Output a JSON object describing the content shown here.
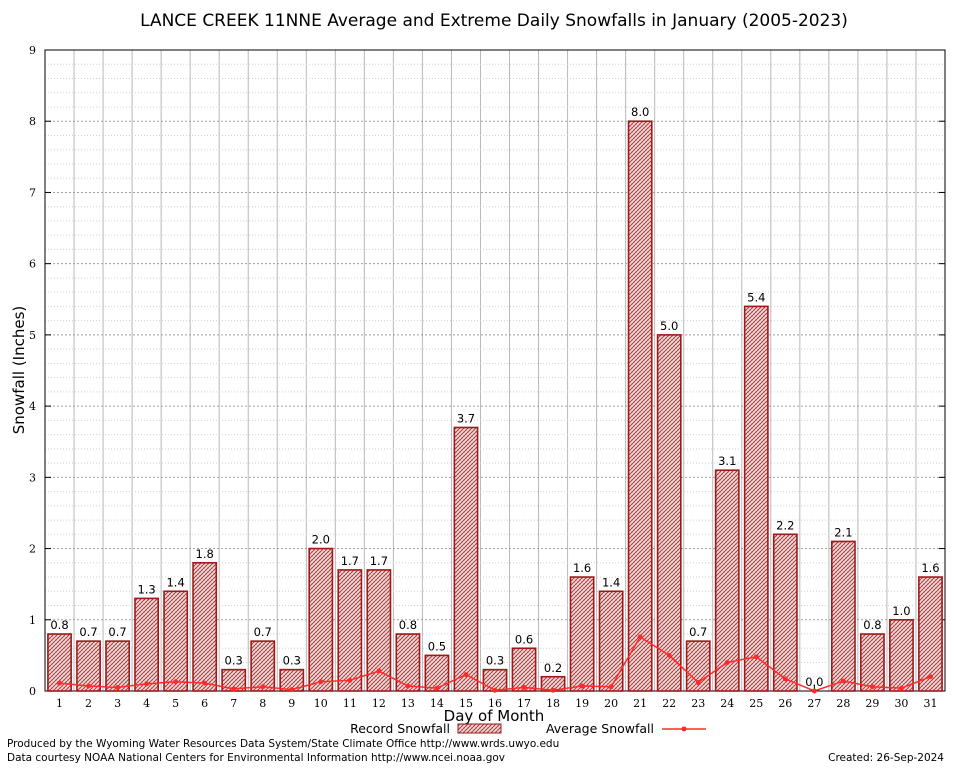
{
  "chart_data": {
    "type": "bar",
    "title": "LANCE CREEK 11NNE Average and Extreme Daily Snowfalls in January (2005-2023)",
    "xlabel": "Day of Month",
    "ylabel": "Snowfall (Inches)",
    "ylim": [
      0,
      9
    ],
    "yticks": [
      0,
      1,
      2,
      3,
      4,
      5,
      6,
      7,
      8,
      9
    ],
    "categories": [
      "1",
      "2",
      "3",
      "4",
      "5",
      "6",
      "7",
      "8",
      "9",
      "10",
      "11",
      "12",
      "13",
      "14",
      "15",
      "16",
      "17",
      "18",
      "19",
      "20",
      "21",
      "22",
      "23",
      "24",
      "25",
      "26",
      "27",
      "28",
      "29",
      "30",
      "31"
    ],
    "series": [
      {
        "name": "Record Snowfall",
        "kind": "bar",
        "color": "#b22222",
        "fill": "#e8c8c8",
        "values": [
          0.8,
          0.7,
          0.7,
          1.3,
          1.4,
          1.8,
          0.3,
          0.7,
          0.3,
          2.0,
          1.7,
          1.7,
          0.8,
          0.5,
          3.7,
          0.3,
          0.6,
          0.2,
          1.6,
          1.4,
          8.0,
          5.0,
          0.7,
          3.1,
          5.4,
          2.2,
          0.0,
          2.1,
          0.8,
          1.0,
          1.6
        ],
        "labels": [
          "0.8",
          "0.7",
          "0.7",
          "1.3",
          "1.4",
          "1.8",
          "0.3",
          "0.7",
          "0.3",
          "2.0",
          "1.7",
          "1.7",
          "0.8",
          "0.5",
          "3.7",
          "0.3",
          "0.6",
          "0.2",
          "1.6",
          "1.4",
          "8.0",
          "5.0",
          "0.7",
          "3.1",
          "5.4",
          "2.2",
          "0.0",
          "2.1",
          "0.8",
          "1.0",
          "1.6"
        ]
      },
      {
        "name": "Average Snowfall",
        "kind": "line",
        "color": "#ff2a2a",
        "values": [
          0.11,
          0.07,
          0.05,
          0.1,
          0.13,
          0.11,
          0.03,
          0.06,
          0.02,
          0.13,
          0.15,
          0.28,
          0.07,
          0.04,
          0.23,
          0.01,
          0.05,
          0.01,
          0.07,
          0.06,
          0.76,
          0.5,
          0.12,
          0.4,
          0.48,
          0.17,
          0.0,
          0.14,
          0.06,
          0.04,
          0.2
        ]
      }
    ],
    "grid": true,
    "legend": "bottom"
  },
  "footer": {
    "produced_by": "Produced by the Wyoming Water Resources Data System/State Climate Office http://www.wrds.uwyo.edu",
    "courtesy": "Data courtesy NOAA National Centers for Environmental Information http://www.ncei.noaa.gov",
    "created": "Created:  26-Sep-2024"
  }
}
